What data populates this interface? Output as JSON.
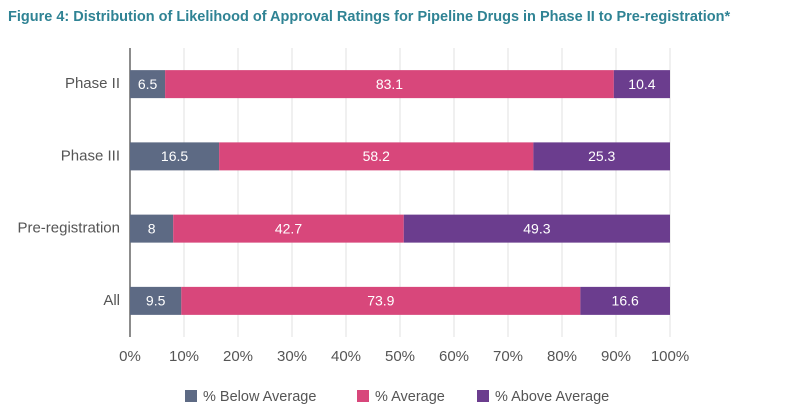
{
  "chart_data": {
    "type": "stacked-bar-horizontal",
    "title": "Figure 4: Distribution of Likelihood of Approval Ratings for Pipeline Drugs in Phase II to Pre-registration*",
    "categories": [
      "Phase II",
      "Phase III",
      "Pre-registration",
      "All"
    ],
    "series": [
      {
        "name": "% Below Average",
        "color": "#5d6a84",
        "values": [
          6.5,
          16.5,
          8,
          9.5
        ]
      },
      {
        "name": "% Average",
        "color": "#d8477b",
        "values": [
          83.1,
          58.2,
          42.7,
          73.9
        ]
      },
      {
        "name": "% Above Average",
        "color": "#6b3d8e",
        "values": [
          10.4,
          25.3,
          49.3,
          16.6
        ]
      }
    ],
    "xlim": [
      0,
      100
    ],
    "xticks": [
      {
        "value": 0,
        "label": "0%"
      },
      {
        "value": 10,
        "label": "10%"
      },
      {
        "value": 20,
        "label": "20%"
      },
      {
        "value": 30,
        "label": "30%"
      },
      {
        "value": 40,
        "label": "40%"
      },
      {
        "value": 50,
        "label": "50%"
      },
      {
        "value": 60,
        "label": "60%"
      },
      {
        "value": 70,
        "label": "70%"
      },
      {
        "value": 80,
        "label": "80%"
      },
      {
        "value": 90,
        "label": "90%"
      },
      {
        "value": 100,
        "label": "100%"
      }
    ],
    "grid": true
  }
}
